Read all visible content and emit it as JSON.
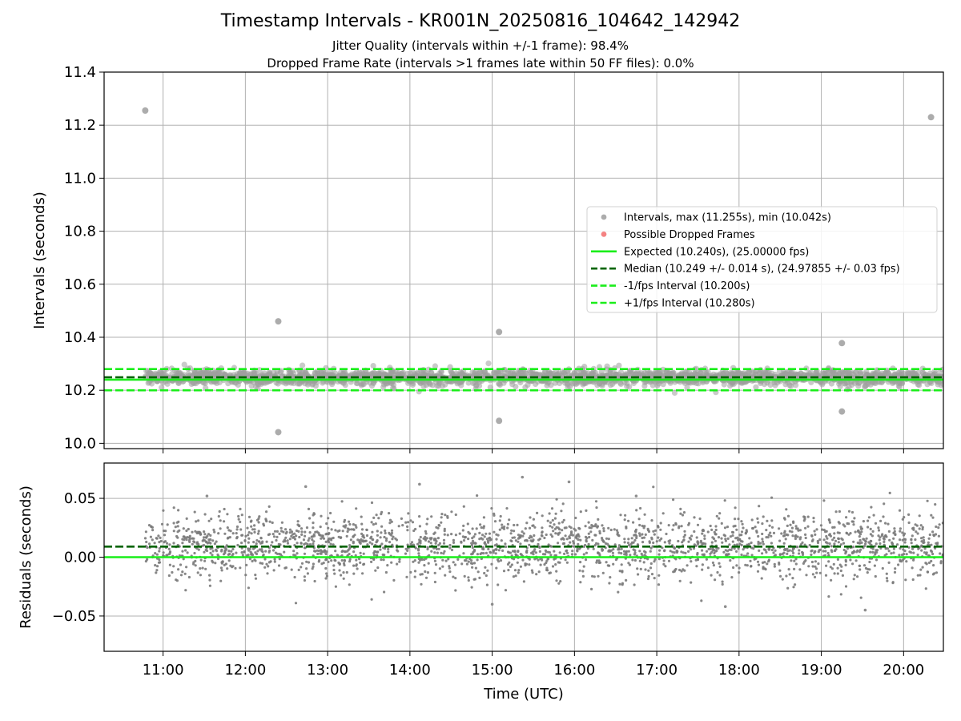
{
  "chart_data": [
    {
      "type": "scatter",
      "title": "Timestamp Intervals - KR001N_20250816_104642_142942",
      "subtitle_lines": [
        "Jitter Quality (intervals within +/-1 frame): 98.4%",
        "Dropped Frame Rate (intervals >1 frames late within 50 FF files): 0.0%"
      ],
      "xlabel": "",
      "ylabel": "Intervals (seconds)",
      "xlim": [
        "10:17",
        "20:29"
      ],
      "ylim": [
        9.98,
        11.4
      ],
      "yticks": [
        10.0,
        10.2,
        10.4,
        10.6,
        10.8,
        11.0,
        11.2,
        11.4
      ],
      "ytick_labels": [
        "10.0",
        "10.2",
        "10.4",
        "10.6",
        "10.8",
        "11.0",
        "11.2",
        "11.4"
      ],
      "xticks": [
        "11:00",
        "12:00",
        "13:00",
        "14:00",
        "15:00",
        "16:00",
        "17:00",
        "18:00",
        "19:00",
        "20:00"
      ],
      "grid": true,
      "legend_position": "center-right",
      "legend": [
        {
          "label": "Intervals, max (11.255s), min (10.042s)",
          "style": "marker",
          "color": "#9e9e9e"
        },
        {
          "label": "Possible Dropped Frames",
          "style": "marker",
          "color": "#f26c6c"
        },
        {
          "label": "Expected (10.240s), (25.00000 fps)",
          "style": "solid",
          "color": "#1aee1a"
        },
        {
          "label": "Median (10.249 +/- 0.014 s), (24.97855 +/- 0.03 fps)",
          "style": "dashed",
          "color": "#006400"
        },
        {
          "label": "-1/fps Interval (10.200s)",
          "style": "dashed",
          "color": "#1aee1a"
        },
        {
          "label": "+1/fps Interval (10.280s)",
          "style": "dashed",
          "color": "#1aee1a"
        }
      ],
      "reference_lines": [
        {
          "name": "Expected",
          "y": 10.24,
          "style": "solid",
          "color": "#1aee1a"
        },
        {
          "name": "Median",
          "y": 10.249,
          "style": "dashed",
          "color": "#006400"
        },
        {
          "name": "-1/fps Interval",
          "y": 10.2,
          "style": "dashed",
          "color": "#1aee1a"
        },
        {
          "name": "+1/fps Interval",
          "y": 10.28,
          "style": "dashed",
          "color": "#1aee1a"
        }
      ],
      "series": [
        {
          "name": "Intervals",
          "color": "#9e9e9e",
          "x_range": [
            "10:47",
            "20:29"
          ],
          "y_center": 10.249,
          "y_spread": 0.014,
          "outliers": [
            {
              "x": "10:47",
              "y": 11.255
            },
            {
              "x": "12:24",
              "y": 10.46
            },
            {
              "x": "12:24",
              "y": 10.042
            },
            {
              "x": "15:05",
              "y": 10.42
            },
            {
              "x": "15:05",
              "y": 10.085
            },
            {
              "x": "19:15",
              "y": 10.378
            },
            {
              "x": "19:15",
              "y": 10.12
            },
            {
              "x": "20:20",
              "y": 11.23
            }
          ]
        },
        {
          "name": "Possible Dropped Frames",
          "color": "#f26c6c",
          "points": []
        }
      ]
    },
    {
      "type": "scatter",
      "title": "",
      "xlabel": "Time (UTC)",
      "ylabel": "Residuals (seconds)",
      "xlim": [
        "10:17",
        "20:29"
      ],
      "ylim": [
        -0.08,
        0.08
      ],
      "yticks": [
        -0.05,
        0.0,
        0.05
      ],
      "ytick_labels": [
        "−0.05",
        "0.00",
        "0.05"
      ],
      "xticks": [
        "11:00",
        "12:00",
        "13:00",
        "14:00",
        "15:00",
        "16:00",
        "17:00",
        "18:00",
        "19:00",
        "20:00"
      ],
      "grid": true,
      "reference_lines": [
        {
          "name": "Expected",
          "y": 0.0,
          "style": "solid",
          "color": "#1aee1a"
        },
        {
          "name": "Median",
          "y": 0.009,
          "style": "dashed",
          "color": "#006400"
        }
      ],
      "series": [
        {
          "name": "Residuals",
          "color": "#7a7a7a",
          "x_range": [
            "10:47",
            "20:29"
          ],
          "y_center": 0.009,
          "y_spread": 0.014,
          "notable_points": [
            {
              "x": "11:32",
              "y": 0.052
            },
            {
              "x": "12:44",
              "y": 0.06
            },
            {
              "x": "14:07",
              "y": 0.062
            },
            {
              "x": "15:22",
              "y": 0.068
            },
            {
              "x": "15:56",
              "y": 0.064
            },
            {
              "x": "16:45",
              "y": 0.052
            },
            {
              "x": "15:00",
              "y": -0.04
            },
            {
              "x": "17:50",
              "y": -0.042
            },
            {
              "x": "19:32",
              "y": -0.045
            }
          ]
        }
      ]
    }
  ]
}
